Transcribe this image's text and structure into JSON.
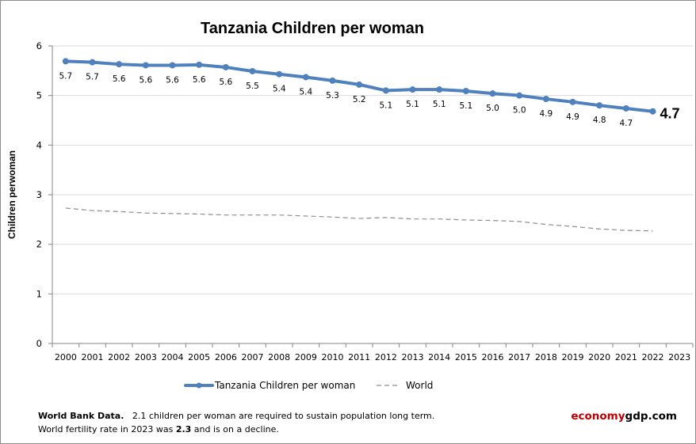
{
  "chart_data": {
    "type": "line",
    "title": "Tanzania Children per woman",
    "xlabel": "",
    "ylabel": "Children perwoman",
    "ylim": [
      0,
      6
    ],
    "yticks": [
      "0",
      "1",
      "2",
      "3",
      "4",
      "5",
      "6"
    ],
    "grid": true,
    "legend_position": "bottom",
    "categories": [
      "2000",
      "2001",
      "2002",
      "2003",
      "2004",
      "2005",
      "2006",
      "2007",
      "2008",
      "2009",
      "2010",
      "2011",
      "2012",
      "2013",
      "2014",
      "2015",
      "2016",
      "2017",
      "2018",
      "2019",
      "2020",
      "2021",
      "2022",
      "2023"
    ],
    "series": [
      {
        "name": "Tanzania Children per woman",
        "color": "#4f81bd",
        "style": "solid-with-markers",
        "values": [
          5.69,
          5.67,
          5.63,
          5.61,
          5.61,
          5.62,
          5.57,
          5.49,
          5.43,
          5.37,
          5.3,
          5.22,
          5.1,
          5.12,
          5.12,
          5.09,
          5.04,
          5.0,
          4.93,
          4.87,
          4.8,
          4.74,
          4.68,
          null
        ],
        "data_labels": [
          "5.7",
          "5.7",
          "5.6",
          "5.6",
          "5.6",
          "5.6",
          "5.6",
          "5.5",
          "5.4",
          "5.4",
          "5.3",
          "5.2",
          "5.1",
          "5.1",
          "5.1",
          "5.1",
          "5.0",
          "5.0",
          "4.9",
          "4.9",
          "4.8",
          "4.7",
          "4.7",
          ""
        ],
        "last_label": "4.7"
      },
      {
        "name": "World",
        "color": "#8c8c8c",
        "style": "dashed",
        "values": [
          2.73,
          2.68,
          2.66,
          2.63,
          2.62,
          2.61,
          2.59,
          2.59,
          2.59,
          2.57,
          2.55,
          2.52,
          2.54,
          2.51,
          2.51,
          2.49,
          2.48,
          2.46,
          2.4,
          2.36,
          2.31,
          2.28,
          2.27,
          null
        ]
      }
    ]
  },
  "footnote": {
    "line1_bold": "World Bank Data.",
    "line1_rest": "2.1 children per woman  are required to sustain population long term.",
    "line2_pre": "World fertility rate in 2023 was ",
    "line2_bold": "2.3",
    "line2_post": " and is on a decline."
  },
  "brand": {
    "part1": "economy",
    "part2": "gdp.com",
    "part1_color": "#c00000"
  }
}
